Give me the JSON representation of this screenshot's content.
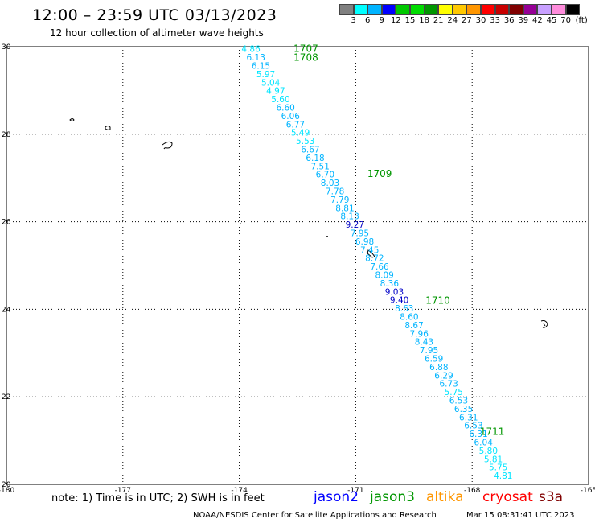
{
  "header": {
    "title": "12:00 – 23:59 UTC 03/13/2023",
    "subtitle": "12 hour collection of altimeter wave heights"
  },
  "colorbar": {
    "colors": [
      "#808080",
      "#00ffff",
      "#00b4ff",
      "#0000ff",
      "#00c800",
      "#00dc00",
      "#009600",
      "#ffff00",
      "#ffc800",
      "#ff9600",
      "#ff0000",
      "#c80000",
      "#800000",
      "#960096",
      "#c8a0ff",
      "#ff8cdc",
      "#000000"
    ],
    "labels": [
      "3",
      "6",
      "9",
      "12",
      "15",
      "18",
      "21",
      "24",
      "27",
      "30",
      "33",
      "36",
      "39",
      "42",
      "45",
      "70",
      "(ft)"
    ]
  },
  "chart_data": {
    "type": "map",
    "xlim": [
      -180,
      -165
    ],
    "ylim": [
      20,
      30
    ],
    "x_ticks": [
      "-180",
      "-177",
      "-174",
      "-171",
      "-168",
      "-165"
    ],
    "y_ticks": [
      "30",
      "28",
      "26",
      "24",
      "22",
      "20"
    ],
    "pass_labels": [
      {
        "text": "1707",
        "lon": -172.6,
        "lat": 29.95
      },
      {
        "text": "1708",
        "lon": -172.6,
        "lat": 29.75
      },
      {
        "text": "1709",
        "lon": -170.7,
        "lat": 27.1
      },
      {
        "text": "1710",
        "lon": -169.2,
        "lat": 24.2
      },
      {
        "text": "1711",
        "lon": -167.8,
        "lat": 21.2
      }
    ],
    "track_start": {
      "lon": -173.7,
      "lat": 29.95
    },
    "track_end": {
      "lon": -167.2,
      "lat": 20.2
    },
    "swh_values": [
      {
        "v": "4.86",
        "c": "#00e5ff"
      },
      {
        "v": "6.13",
        "c": "#00b4ff"
      },
      {
        "v": "6.15",
        "c": "#00b4ff"
      },
      {
        "v": "5.97",
        "c": "#00e5ff"
      },
      {
        "v": "5.04",
        "c": "#00e5ff"
      },
      {
        "v": "4.97",
        "c": "#00e5ff"
      },
      {
        "v": "5.60",
        "c": "#00e5ff"
      },
      {
        "v": "6.60",
        "c": "#00b4ff"
      },
      {
        "v": "6.06",
        "c": "#00b4ff"
      },
      {
        "v": "6.77",
        "c": "#00b4ff"
      },
      {
        "v": "5.49",
        "c": "#00e5ff"
      },
      {
        "v": "5.53",
        "c": "#00e5ff"
      },
      {
        "v": "6.67",
        "c": "#00b4ff"
      },
      {
        "v": "6.18",
        "c": "#00b4ff"
      },
      {
        "v": "7.51",
        "c": "#00b4ff"
      },
      {
        "v": "6.70",
        "c": "#00b4ff"
      },
      {
        "v": "8.03",
        "c": "#00b4ff"
      },
      {
        "v": "7.78",
        "c": "#00b4ff"
      },
      {
        "v": "7.79",
        "c": "#00b4ff"
      },
      {
        "v": "8.81",
        "c": "#00b4ff"
      },
      {
        "v": "8.13",
        "c": "#00b4ff"
      },
      {
        "v": "9.27",
        "c": "#0000c8"
      },
      {
        "v": "7.95",
        "c": "#00b4ff"
      },
      {
        "v": "6.98",
        "c": "#00b4ff"
      },
      {
        "v": "7.45",
        "c": "#00b4ff"
      },
      {
        "v": "8.72",
        "c": "#00b4ff"
      },
      {
        "v": "7.66",
        "c": "#00b4ff"
      },
      {
        "v": "8.09",
        "c": "#00b4ff"
      },
      {
        "v": "8.36",
        "c": "#00b4ff"
      },
      {
        "v": "9.03",
        "c": "#0000c8"
      },
      {
        "v": "9.40",
        "c": "#0000c8"
      },
      {
        "v": "8.63",
        "c": "#00b4ff"
      },
      {
        "v": "8.60",
        "c": "#00b4ff"
      },
      {
        "v": "8.67",
        "c": "#00b4ff"
      },
      {
        "v": "7.96",
        "c": "#00b4ff"
      },
      {
        "v": "8.43",
        "c": "#00b4ff"
      },
      {
        "v": "7.95",
        "c": "#00b4ff"
      },
      {
        "v": "6.59",
        "c": "#00b4ff"
      },
      {
        "v": "6.88",
        "c": "#00b4ff"
      },
      {
        "v": "6.29",
        "c": "#00b4ff"
      },
      {
        "v": "6.73",
        "c": "#00b4ff"
      },
      {
        "v": "5.75",
        "c": "#00e5ff"
      },
      {
        "v": "6.53",
        "c": "#00b4ff"
      },
      {
        "v": "6.35",
        "c": "#00b4ff"
      },
      {
        "v": "6.31",
        "c": "#00b4ff"
      },
      {
        "v": "6.53",
        "c": "#00b4ff"
      },
      {
        "v": "6.31",
        "c": "#00b4ff"
      },
      {
        "v": "6.04",
        "c": "#00b4ff"
      },
      {
        "v": "5.80",
        "c": "#00e5ff"
      },
      {
        "v": "5.81",
        "c": "#00e5ff"
      },
      {
        "v": "5.75",
        "c": "#00e5ff"
      },
      {
        "v": "4.81",
        "c": "#00e5ff"
      }
    ]
  },
  "footer": {
    "note": "note: 1) Time is in UTC; 2) SWH is in feet",
    "legend": [
      {
        "label": "jason2",
        "color": "#0000ff"
      },
      {
        "label": "jason3",
        "color": "#009600"
      },
      {
        "label": "altika",
        "color": "#ff9600"
      },
      {
        "label": "cryosat",
        "color": "#ff0000"
      },
      {
        "label": "s3a",
        "color": "#800000"
      }
    ],
    "credit": "NOAA/NESDIS Center for Satellite Applications and Research",
    "timestamp": "Mar 15 08:31:41 UTC 2023"
  }
}
